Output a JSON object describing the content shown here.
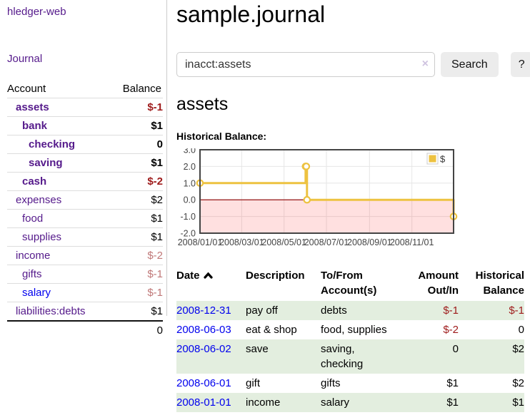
{
  "app_title": "hledger-web",
  "sidebar": {
    "journal_link": "Journal",
    "accounts_table": {
      "account_header": "Account",
      "balance_header": "Balance",
      "rows": [
        {
          "name": "assets",
          "balance": "$-1",
          "level": 1,
          "bold": true,
          "link_style": "visited",
          "balance_style": "neg"
        },
        {
          "name": "bank",
          "balance": "$1",
          "level": 2,
          "bold": true,
          "link_style": "visited",
          "balance_style": "pos"
        },
        {
          "name": "checking",
          "balance": "0",
          "level": 3,
          "bold": true,
          "link_style": "visited",
          "balance_style": "pos"
        },
        {
          "name": "saving",
          "balance": "$1",
          "level": 3,
          "bold": true,
          "link_style": "visited",
          "balance_style": "pos"
        },
        {
          "name": "cash",
          "balance": "$-2",
          "level": 2,
          "bold": true,
          "link_style": "visited",
          "balance_style": "neg"
        },
        {
          "name": "expenses",
          "balance": "$2",
          "level": 1,
          "bold": false,
          "link_style": "visited",
          "balance_style": "pos"
        },
        {
          "name": "food",
          "balance": "$1",
          "level": 2,
          "bold": false,
          "link_style": "visited",
          "balance_style": "pos"
        },
        {
          "name": "supplies",
          "balance": "$1",
          "level": 2,
          "bold": false,
          "link_style": "visited",
          "balance_style": "pos"
        },
        {
          "name": "income",
          "balance": "$-2",
          "level": 1,
          "bold": false,
          "link_style": "visited",
          "balance_style": "negdim"
        },
        {
          "name": "gifts",
          "balance": "$-1",
          "level": 2,
          "bold": false,
          "link_style": "visited",
          "balance_style": "negdim"
        },
        {
          "name": "salary",
          "balance": "$-1",
          "level": 2,
          "bold": false,
          "link_style": "unvisited",
          "balance_style": "negdim"
        },
        {
          "name": "liabilities:debts",
          "balance": "$1",
          "level": 1,
          "bold": false,
          "link_style": "visited",
          "balance_style": "pos"
        }
      ],
      "total": "0"
    }
  },
  "main": {
    "title": "sample.journal",
    "search": {
      "value": "inacct:assets",
      "clear_label": "×",
      "button_label": "Search",
      "help_label": "?"
    },
    "account_heading": "assets",
    "chart_heading": "Historical Balance:"
  },
  "chart_data": {
    "type": "line",
    "step": true,
    "title": "Historical Balance",
    "series": [
      {
        "name": "$",
        "color": "#edc240",
        "points": [
          [
            "2008-01-01",
            1
          ],
          [
            "2008-06-01",
            2
          ],
          [
            "2008-06-02",
            2
          ],
          [
            "2008-06-03",
            0
          ],
          [
            "2008-12-31",
            -1
          ]
        ]
      }
    ],
    "x_range": [
      "2008-01-01",
      "2008-12-31"
    ],
    "ylim": [
      -2,
      3
    ],
    "y_ticks": [
      {
        "label": "3.0",
        "value": 3
      },
      {
        "label": "2.0",
        "value": 2
      },
      {
        "label": "1.0",
        "value": 1
      },
      {
        "label": "0.0",
        "value": 0
      },
      {
        "label": "-1.0",
        "value": -1
      },
      {
        "label": "-2.0",
        "value": -2
      }
    ],
    "x_ticks": [
      {
        "label": "2008/01/01",
        "date": "2008-01-01"
      },
      {
        "label": "2008/03/01",
        "date": "2008-03-01"
      },
      {
        "label": "2008/05/01",
        "date": "2008-05-01"
      },
      {
        "label": "2008/07/01",
        "date": "2008-07-01"
      },
      {
        "label": "2008/09/01",
        "date": "2008-09-01"
      },
      {
        "label": "2008/11/01",
        "date": "2008-11-01"
      }
    ],
    "legend": {
      "label": "$",
      "position": "top-right",
      "swatch_color": "#edc240"
    },
    "grid": true,
    "gridline_color": "#e6e6e6",
    "border_color": "#444444",
    "zero_line_color": "#8b0000",
    "negative_region_color": "rgba(255,0,0,0.12)"
  },
  "register": {
    "headers": {
      "date": "Date",
      "description": "Description",
      "accounts": "To/From Account(s)",
      "amount": "Amount Out/In",
      "balance": "Historical Balance"
    },
    "rows": [
      {
        "date": "2008-12-31",
        "description": "pay off",
        "accounts": "debts",
        "amount": "$-1",
        "balance": "$-1",
        "amount_negative": true,
        "balance_negative": true
      },
      {
        "date": "2008-06-03",
        "description": "eat & shop",
        "accounts": "food, supplies",
        "amount": "$-2",
        "balance": "0",
        "amount_negative": true,
        "balance_negative": false
      },
      {
        "date": "2008-06-02",
        "description": "save",
        "accounts": "saving, checking",
        "amount": "0",
        "balance": "$2",
        "amount_negative": false,
        "balance_negative": false
      },
      {
        "date": "2008-06-01",
        "description": "gift",
        "accounts": "gifts",
        "amount": "$1",
        "balance": "$2",
        "amount_negative": false,
        "balance_negative": false
      },
      {
        "date": "2008-01-01",
        "description": "income",
        "accounts": "salary",
        "amount": "$1",
        "balance": "$1",
        "amount_negative": false,
        "balance_negative": false
      }
    ]
  }
}
